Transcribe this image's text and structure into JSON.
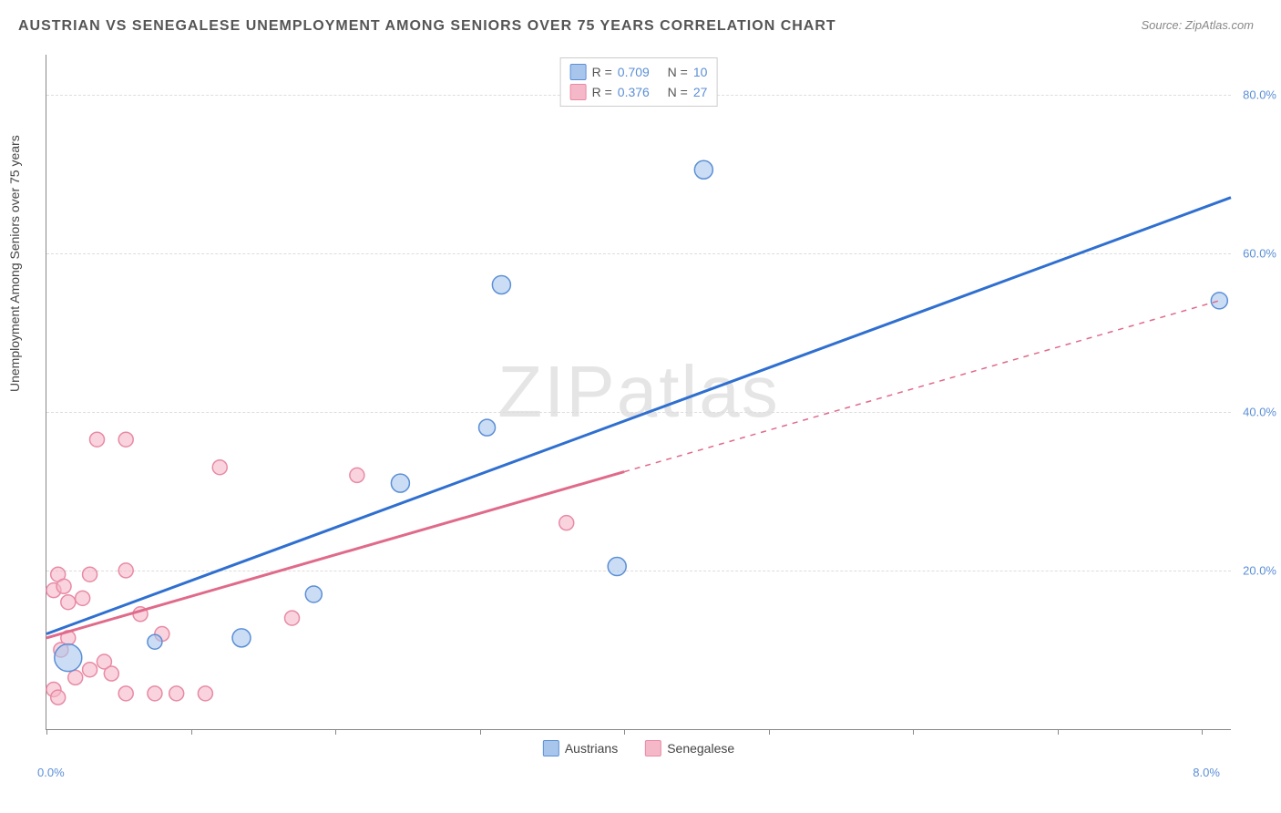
{
  "title": "AUSTRIAN VS SENEGALESE UNEMPLOYMENT AMONG SENIORS OVER 75 YEARS CORRELATION CHART",
  "source": "Source: ZipAtlas.com",
  "y_axis_label": "Unemployment Among Seniors over 75 years",
  "watermark": "ZIPatlas",
  "chart": {
    "type": "scatter",
    "background_color": "#ffffff",
    "grid_color": "#dddddd",
    "axis_color": "#888888",
    "xlim": [
      0,
      8.2
    ],
    "ylim": [
      0,
      85
    ],
    "x_ticks": [
      0,
      1,
      2,
      3,
      4,
      5,
      6,
      7,
      8
    ],
    "x_tick_labels": {
      "0": "0.0%",
      "8": "8.0%"
    },
    "y_gridlines": [
      20,
      40,
      60,
      80
    ],
    "y_tick_labels": {
      "20": "20.0%",
      "40": "40.0%",
      "60": "60.0%",
      "80": "80.0%"
    },
    "axis_label_color": "#5b8fd6",
    "axis_label_fontsize": 13,
    "marker_radius": 9,
    "marker_stroke_width": 1.5,
    "trendline_width": 3,
    "series": [
      {
        "name": "Austrians",
        "fill_color": "#a8c6ec",
        "stroke_color": "#5b8fd6",
        "fill_opacity": 0.6,
        "R": "0.709",
        "N": "10",
        "trendline": {
          "x1": 0.0,
          "y1": 12.0,
          "x2": 8.2,
          "y2": 67.0,
          "solid_until_x": 8.2,
          "color": "#2f6fd0"
        },
        "points": [
          {
            "x": 0.15,
            "y": 9.0,
            "r": 15
          },
          {
            "x": 0.75,
            "y": 11.0,
            "r": 8
          },
          {
            "x": 1.35,
            "y": 11.5,
            "r": 10
          },
          {
            "x": 1.85,
            "y": 17.0,
            "r": 9
          },
          {
            "x": 2.45,
            "y": 31.0,
            "r": 10
          },
          {
            "x": 3.05,
            "y": 38.0,
            "r": 9
          },
          {
            "x": 3.15,
            "y": 56.0,
            "r": 10
          },
          {
            "x": 3.95,
            "y": 20.5,
            "r": 10
          },
          {
            "x": 4.55,
            "y": 70.5,
            "r": 10
          },
          {
            "x": 8.12,
            "y": 54.0,
            "r": 9
          }
        ]
      },
      {
        "name": "Senegalese",
        "fill_color": "#f5b8c8",
        "stroke_color": "#e88aa5",
        "fill_opacity": 0.6,
        "R": "0.376",
        "N": "27",
        "trendline": {
          "x1": 0.0,
          "y1": 11.5,
          "x2": 8.12,
          "y2": 54.0,
          "solid_until_x": 4.0,
          "color": "#e06a8a"
        },
        "points": [
          {
            "x": 0.05,
            "y": 5.0,
            "r": 8
          },
          {
            "x": 0.05,
            "y": 17.5,
            "r": 8
          },
          {
            "x": 0.08,
            "y": 19.5,
            "r": 8
          },
          {
            "x": 0.08,
            "y": 4.0,
            "r": 8
          },
          {
            "x": 0.12,
            "y": 18.0,
            "r": 8
          },
          {
            "x": 0.15,
            "y": 16.0,
            "r": 8
          },
          {
            "x": 0.15,
            "y": 11.5,
            "r": 8
          },
          {
            "x": 0.25,
            "y": 16.5,
            "r": 8
          },
          {
            "x": 0.3,
            "y": 19.5,
            "r": 8
          },
          {
            "x": 0.3,
            "y": 7.5,
            "r": 8
          },
          {
            "x": 0.35,
            "y": 36.5,
            "r": 8
          },
          {
            "x": 0.4,
            "y": 8.5,
            "r": 8
          },
          {
            "x": 0.55,
            "y": 36.5,
            "r": 8
          },
          {
            "x": 0.55,
            "y": 20.0,
            "r": 8
          },
          {
            "x": 0.55,
            "y": 4.5,
            "r": 8
          },
          {
            "x": 0.65,
            "y": 14.5,
            "r": 8
          },
          {
            "x": 0.75,
            "y": 4.5,
            "r": 8
          },
          {
            "x": 0.8,
            "y": 12.0,
            "r": 8
          },
          {
            "x": 0.9,
            "y": 4.5,
            "r": 8
          },
          {
            "x": 1.1,
            "y": 4.5,
            "r": 8
          },
          {
            "x": 1.2,
            "y": 33.0,
            "r": 8
          },
          {
            "x": 1.7,
            "y": 14.0,
            "r": 8
          },
          {
            "x": 2.15,
            "y": 32.0,
            "r": 8
          },
          {
            "x": 3.6,
            "y": 26.0,
            "r": 8
          },
          {
            "x": 0.2,
            "y": 6.5,
            "r": 8
          },
          {
            "x": 0.45,
            "y": 7.0,
            "r": 8
          },
          {
            "x": 0.1,
            "y": 10.0,
            "r": 8
          }
        ]
      }
    ],
    "legend_bottom": [
      {
        "label": "Austrians",
        "fill": "#a8c6ec",
        "stroke": "#5b8fd6"
      },
      {
        "label": "Senegalese",
        "fill": "#f5b8c8",
        "stroke": "#e88aa5"
      }
    ]
  }
}
